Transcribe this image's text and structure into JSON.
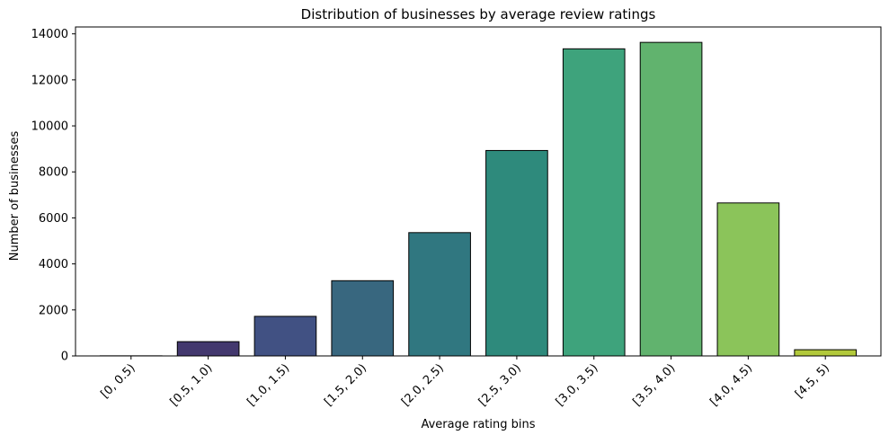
{
  "chart_data": {
    "type": "bar",
    "title": "Distribution of businesses by average review ratings",
    "xlabel": "Average rating bins",
    "ylabel": "Number of businesses",
    "categories": [
      "[0, 0.5)",
      "[0.5, 1.0)",
      "[1.0, 1.5)",
      "[1.5, 2.0)",
      "[2.0, 2.5)",
      "[2.5, 3.0)",
      "[3.0, 3.5)",
      "[3.5, 4.0)",
      "[4.0, 4.5)",
      "[4.5, 5)"
    ],
    "values": [
      5,
      620,
      1720,
      3270,
      5360,
      8930,
      13350,
      13630,
      6650,
      270
    ],
    "colors": [
      "#440154",
      "#472f7d",
      "#3b518b",
      "#2c718e",
      "#21908d",
      "#27ad81",
      "#5cc863",
      "#aadc32",
      "#8bc34a",
      "#b5de2b"
    ],
    "bar_colors": [
      "#3f2265",
      "#43386e",
      "#415183",
      "#38677f",
      "#307780",
      "#2e8a7c",
      "#3ea37c",
      "#61b36e",
      "#8bc45a",
      "#b2c93b"
    ],
    "edge_color": "#000000",
    "ylim": [
      0,
      14300
    ],
    "yticks": [
      0,
      2000,
      4000,
      6000,
      8000,
      10000,
      12000,
      14000
    ],
    "grid": false,
    "xtick_rotation": 45
  }
}
